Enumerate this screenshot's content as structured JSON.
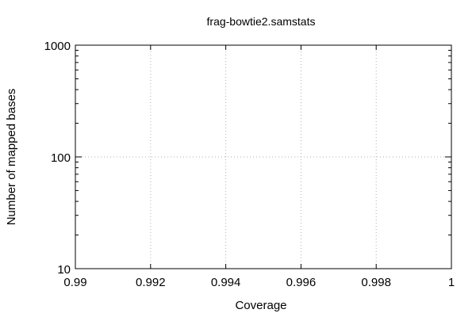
{
  "chart_data": {
    "type": "line",
    "title": "frag-bowtie2.samstats",
    "xlabel": "Coverage",
    "ylabel": "Number of mapped bases",
    "xlim": [
      0.99,
      1
    ],
    "ylim": [
      10,
      1000
    ],
    "y_scale": "log",
    "x_ticks": [
      0.99,
      0.992,
      0.994,
      0.996,
      0.998,
      1
    ],
    "x_tick_labels": [
      "0.99",
      "0.992",
      "0.994",
      "0.996",
      "0.998",
      "1"
    ],
    "y_ticks": [
      10,
      100,
      1000
    ],
    "y_tick_labels": [
      "10",
      "100",
      "1000"
    ],
    "grid": true,
    "series": []
  }
}
